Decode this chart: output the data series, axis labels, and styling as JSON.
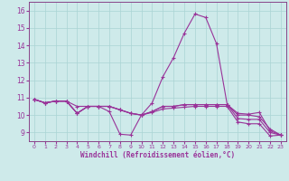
{
  "xlabel": "Windchill (Refroidissement éolien,°C)",
  "background_color": "#ceeaea",
  "grid_color": "#aad4d4",
  "line_color": "#993399",
  "spine_color": "#884488",
  "xlim": [
    -0.5,
    23.5
  ],
  "ylim": [
    8.5,
    16.5
  ],
  "xticks": [
    0,
    1,
    2,
    3,
    4,
    5,
    6,
    7,
    8,
    9,
    10,
    11,
    12,
    13,
    14,
    15,
    16,
    17,
    18,
    19,
    20,
    21,
    22,
    23
  ],
  "yticks": [
    9,
    10,
    11,
    12,
    13,
    14,
    15,
    16
  ],
  "series": [
    [
      10.9,
      10.7,
      10.8,
      10.8,
      10.1,
      10.5,
      10.5,
      10.2,
      8.9,
      8.85,
      10.0,
      10.7,
      12.2,
      13.3,
      14.7,
      15.8,
      15.6,
      14.1,
      10.6,
      10.1,
      10.05,
      10.15,
      9.1,
      8.85
    ],
    [
      10.9,
      10.7,
      10.8,
      10.8,
      10.1,
      10.5,
      10.5,
      10.5,
      10.3,
      10.1,
      10.0,
      10.2,
      10.5,
      10.5,
      10.6,
      10.6,
      10.6,
      10.6,
      10.6,
      10.0,
      10.0,
      9.9,
      9.2,
      8.85
    ],
    [
      10.9,
      10.7,
      10.8,
      10.8,
      10.1,
      10.5,
      10.5,
      10.5,
      10.3,
      10.1,
      10.0,
      10.2,
      10.5,
      10.5,
      10.6,
      10.6,
      10.6,
      10.6,
      10.6,
      9.8,
      9.75,
      9.75,
      9.0,
      8.85
    ],
    [
      10.9,
      10.7,
      10.8,
      10.8,
      10.5,
      10.5,
      10.5,
      10.5,
      10.3,
      10.1,
      10.0,
      10.15,
      10.35,
      10.4,
      10.45,
      10.5,
      10.5,
      10.5,
      10.5,
      9.6,
      9.5,
      9.5,
      8.8,
      8.85
    ]
  ]
}
